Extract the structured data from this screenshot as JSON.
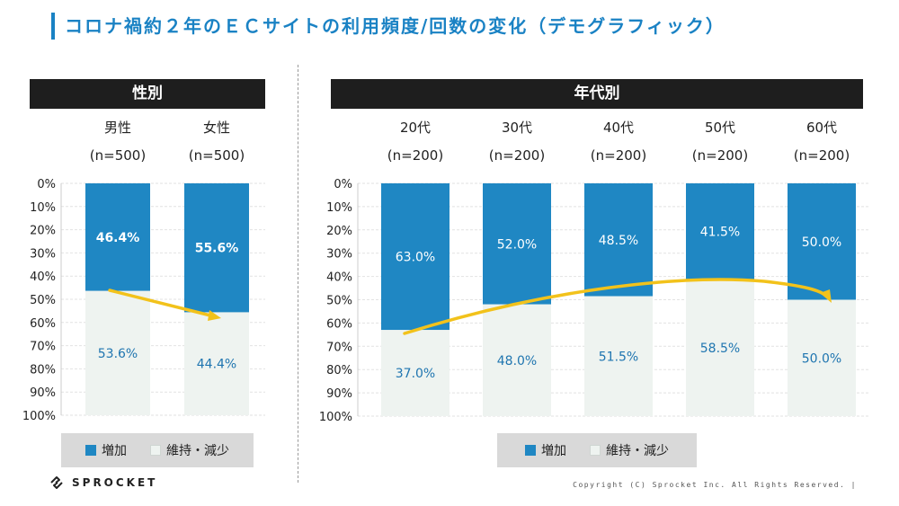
{
  "title": "コロナ禍約２年のＥＣサイトの利用頻度/回数の変化（デモグラフィック）",
  "colors": {
    "increase": "#1f87c3",
    "keep_decrease": "#eef3f0",
    "arrow": "#f2c21b",
    "accent": "#1a82c4"
  },
  "legend": {
    "increase": "増加",
    "keep_decrease": "維持・減少"
  },
  "footer": {
    "logo": "SPROCKET",
    "logo_icon": "sprocket-logo-icon",
    "copyright": "Copyright (C) Sprocket Inc. All Rights Reserved. |"
  },
  "chart_data": [
    {
      "type": "bar",
      "stacked": true,
      "header": "性別",
      "categories": [
        "男性",
        "女性"
      ],
      "sample_sizes": [
        "(n=500)",
        "(n=500)"
      ],
      "series": [
        {
          "name": "増加",
          "values": [
            46.4,
            55.6
          ],
          "labels": [
            "46.4%",
            "55.6%"
          ]
        },
        {
          "name": "維持・減少",
          "values": [
            53.6,
            44.4
          ],
          "labels": [
            "53.6%",
            "44.4%"
          ]
        }
      ],
      "yticks": [
        "0%",
        "10%",
        "20%",
        "30%",
        "40%",
        "50%",
        "60%",
        "70%",
        "80%",
        "90%",
        "100%"
      ],
      "ylim": [
        0,
        100
      ],
      "y_inverted": true,
      "grid": true,
      "legend_position": "bottom"
    },
    {
      "type": "bar",
      "stacked": true,
      "header": "年代別",
      "categories": [
        "20代",
        "30代",
        "40代",
        "50代",
        "60代"
      ],
      "sample_sizes": [
        "(n=200)",
        "(n=200)",
        "(n=200)",
        "(n=200)",
        "(n=200)"
      ],
      "series": [
        {
          "name": "増加",
          "values": [
            63.0,
            52.0,
            48.5,
            41.5,
            50.0
          ],
          "labels": [
            "63.0%",
            "52.0%",
            "48.5%",
            "41.5%",
            "50.0%"
          ]
        },
        {
          "name": "維持・減少",
          "values": [
            37.0,
            48.0,
            51.5,
            58.5,
            50.0
          ],
          "labels": [
            "37.0%",
            "48.0%",
            "51.5%",
            "58.5%",
            "50.0%"
          ]
        }
      ],
      "yticks": [
        "0%",
        "10%",
        "20%",
        "30%",
        "40%",
        "50%",
        "60%",
        "70%",
        "80%",
        "90%",
        "100%"
      ],
      "ylim": [
        0,
        100
      ],
      "y_inverted": true,
      "grid": true,
      "legend_position": "bottom"
    }
  ]
}
